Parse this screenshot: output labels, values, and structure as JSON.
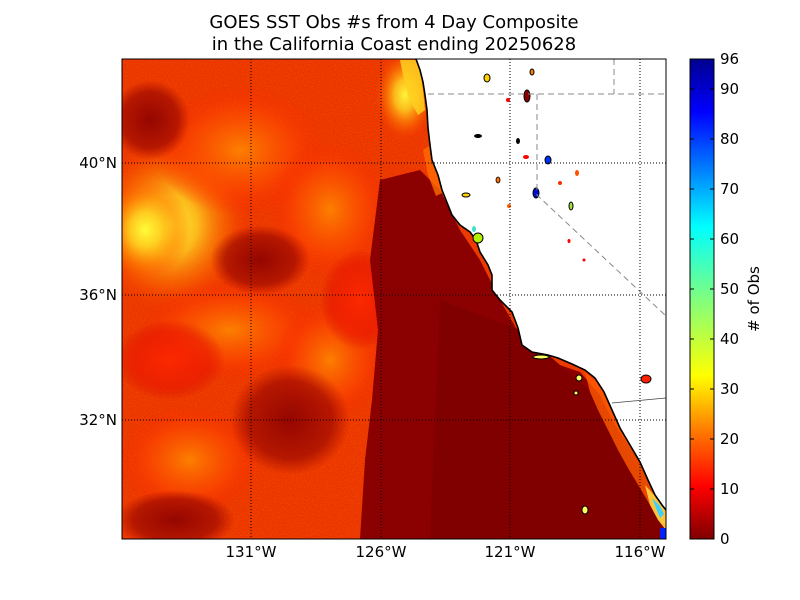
{
  "title_line1": "GOES SST Obs #s from 4 Day Composite",
  "title_line2": " in the California Coast ending 20250628",
  "map": {
    "lat_labels": [
      "40°N",
      "36°N",
      "32°N"
    ],
    "lon_labels": [
      "131°W",
      "126°W",
      "121°W",
      "116°W"
    ]
  },
  "colorbar": {
    "label": "# of Obs",
    "ticks": [
      "0",
      "10",
      "20",
      "30",
      "40",
      "50",
      "60",
      "70",
      "80",
      "90",
      "96"
    ],
    "colormap": "jet",
    "colors": [
      "#7f0000",
      "#ff0000",
      "#ff7f00",
      "#ffff00",
      "#7fff7f",
      "#00ffff",
      "#007fff",
      "#0000ff",
      "#00008f"
    ]
  },
  "colors": {
    "ocean_dominant": "#8b0000",
    "land": "#ffffff",
    "coastline": "#000000",
    "gridline": "#000000",
    "boundary": "#888888"
  }
}
